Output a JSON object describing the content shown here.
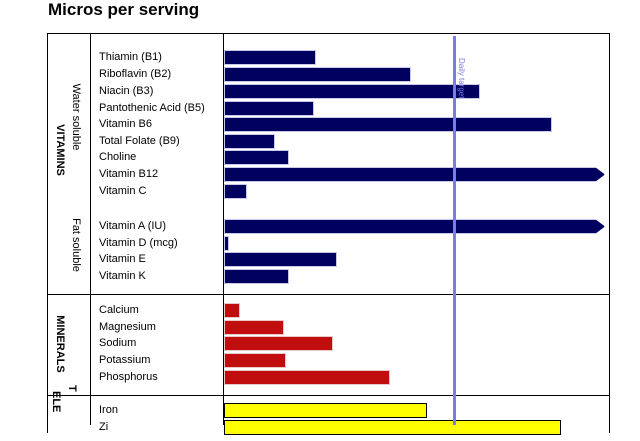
{
  "title": "Micros per serving",
  "chart_data": {
    "type": "bar",
    "orientation": "horizontal",
    "unit": "% of daily target",
    "reference_line": {
      "label": "Daily target",
      "value": 100,
      "color": "#7b7bea"
    },
    "groups": [
      {
        "name": "VITAMINS",
        "color": "#00005e",
        "subgroups": [
          {
            "name": "Water soluble",
            "items": [
              {
                "label": "Thiamin (B1)",
                "value": 40
              },
              {
                "label": "Riboflavin (B2)",
                "value": 81
              },
              {
                "label": "Niacin (B3)",
                "value": 111
              },
              {
                "label": "Pantothenic Acid (B5)",
                "value": 39
              },
              {
                "label": "Vitamin B6",
                "value": 142
              },
              {
                "label": "Total Folate (B9)",
                "value": 22
              },
              {
                "label": "Choline",
                "value": 28
              },
              {
                "label": "Vitamin B12",
                "value": 167,
                "exceeds_axis": true
              },
              {
                "label": "Vitamin C",
                "value": 10
              }
            ]
          },
          {
            "name": "Fat soluble",
            "items": [
              {
                "label": "Vitamin A (IU)",
                "value": 167,
                "exceeds_axis": true
              },
              {
                "label": "Vitamin D (mcg)",
                "value": 2
              },
              {
                "label": "Vitamin E",
                "value": 49
              },
              {
                "label": "Vitamin K",
                "value": 28
              }
            ]
          }
        ]
      },
      {
        "name": "MINERALS",
        "color": "#c00d0d",
        "subgroups": [
          {
            "name": "",
            "items": [
              {
                "label": "Calcium",
                "value": 7
              },
              {
                "label": "Magnesium",
                "value": 26
              },
              {
                "label": "Sodium",
                "value": 47
              },
              {
                "label": "Potassium",
                "value": 27
              },
              {
                "label": "Phosphorus",
                "value": 72
              }
            ]
          }
        ]
      },
      {
        "name": "TRACE ELEMENTS",
        "name_lines": [
          "T",
          "ELE"
        ],
        "color": "#ffff00",
        "subgroups": [
          {
            "name": "",
            "items": [
              {
                "label": "Iron",
                "value": 88
              },
              {
                "label": "Zi",
                "value": 146
              }
            ]
          }
        ]
      }
    ]
  }
}
